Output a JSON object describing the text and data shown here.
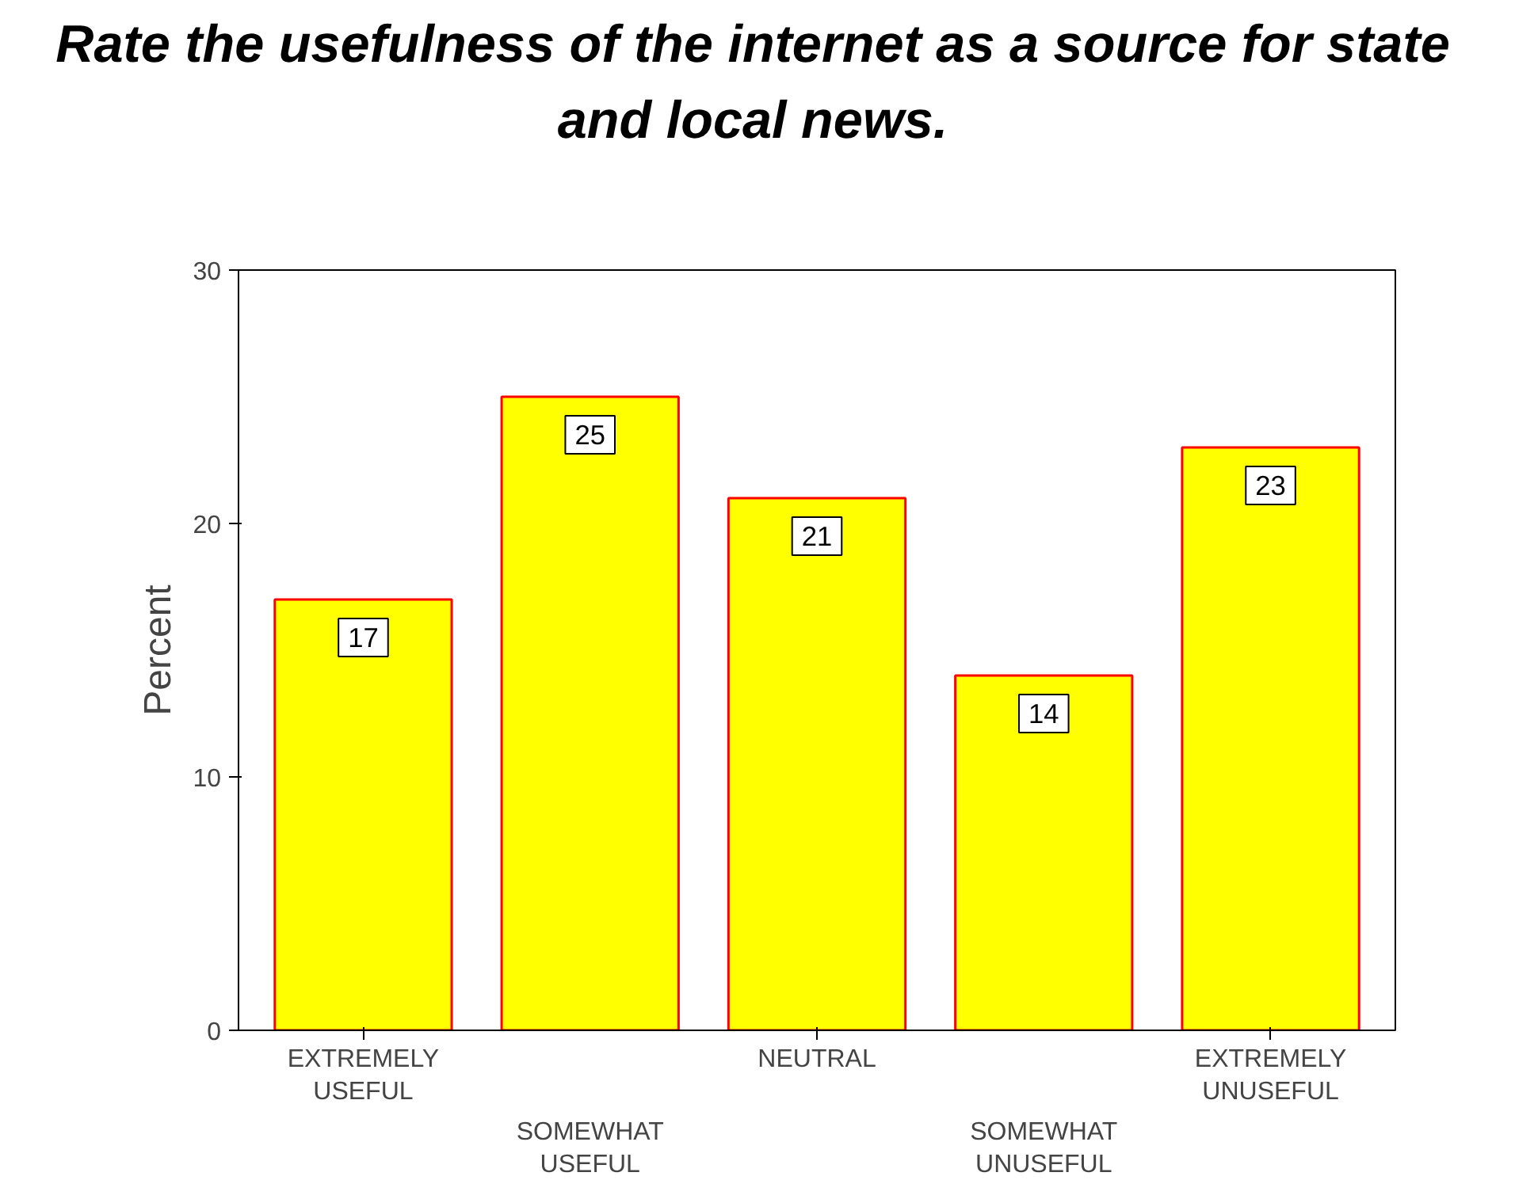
{
  "chart_data": {
    "type": "bar",
    "title": "Rate the usefulness of the internet as a source for state and local news.",
    "categories": [
      "EXTREMELY USEFUL",
      "SOMEWHAT USEFUL",
      "NEUTRAL",
      "SOMEWHAT UNUSEFUL",
      "EXTREMELY UNUSEFUL"
    ],
    "values": [
      17,
      25,
      21,
      14,
      23
    ],
    "color": "#ffff00",
    "ylabel": "Percent",
    "ylim": [
      0,
      30
    ],
    "yticks": [
      0,
      10,
      20,
      30
    ],
    "grid": false,
    "data_labels": true
  }
}
